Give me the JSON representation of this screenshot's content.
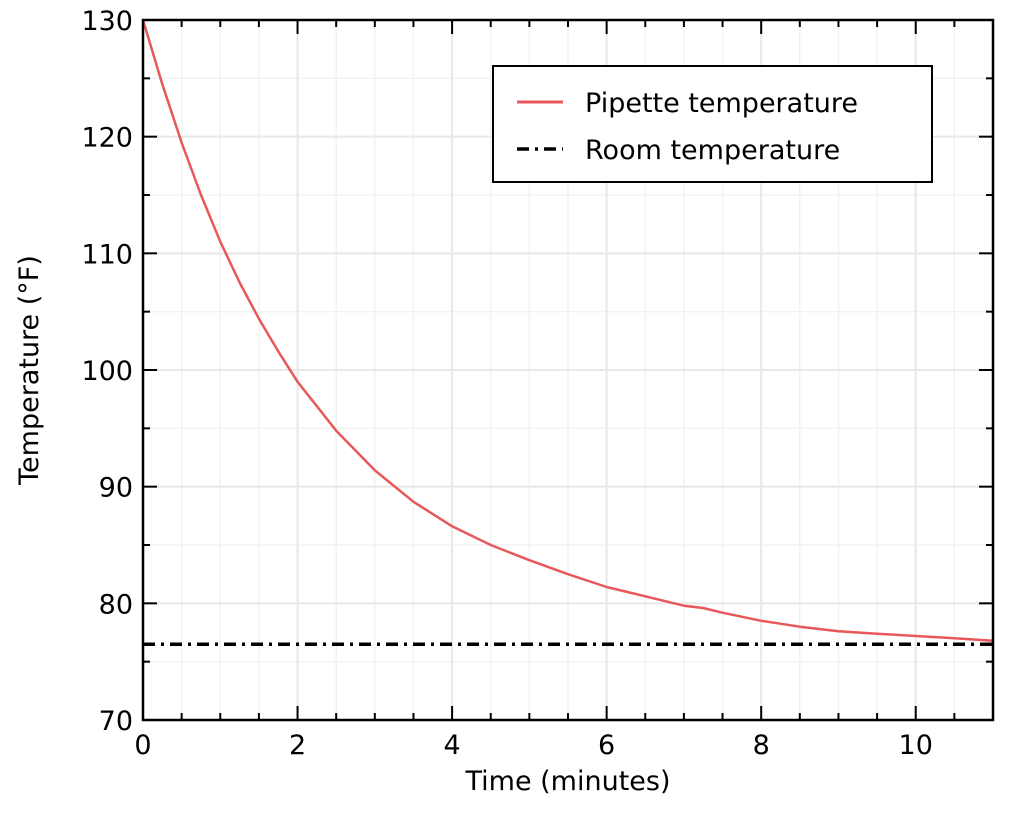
{
  "chart_data": {
    "type": "line",
    "xlabel": "Time (minutes)",
    "ylabel": "Temperature (°F)",
    "xlim": [
      0,
      11
    ],
    "ylim": [
      70,
      130
    ],
    "xticks": [
      0,
      2,
      4,
      6,
      8,
      10
    ],
    "xtick_labels": [
      "0",
      "2",
      "4",
      "6",
      "8",
      "10"
    ],
    "yticks": [
      70,
      80,
      90,
      100,
      110,
      120,
      130
    ],
    "ytick_labels": [
      "70",
      "80",
      "90",
      "100",
      "110",
      "120",
      "130"
    ],
    "grid": true,
    "legend_position": "top-right",
    "series": [
      {
        "name": "Pipette temperature",
        "color": "#e8585a",
        "style": "solid",
        "x": [
          0,
          0.25,
          0.5,
          0.75,
          1,
          1.25,
          1.5,
          1.75,
          2,
          2.5,
          3,
          3.5,
          4,
          4.5,
          5,
          5.5,
          6,
          6.5,
          7,
          7.25,
          7.5,
          8,
          8.5,
          9,
          9.5,
          10,
          10.5,
          11
        ],
        "y": [
          130,
          124.5,
          119.5,
          115,
          111,
          107.5,
          104.4,
          101.6,
          99.0,
          94.8,
          91.4,
          88.7,
          86.6,
          85.0,
          83.7,
          82.5,
          81.4,
          80.6,
          79.8,
          79.6,
          79.2,
          78.5,
          78.0,
          77.6,
          77.4,
          77.2,
          77.0,
          76.8
        ]
      },
      {
        "name": "Room temperature",
        "color": "#000000",
        "style": "dashdot",
        "x": [
          0,
          11
        ],
        "y": [
          76.5,
          76.5
        ]
      }
    ]
  }
}
